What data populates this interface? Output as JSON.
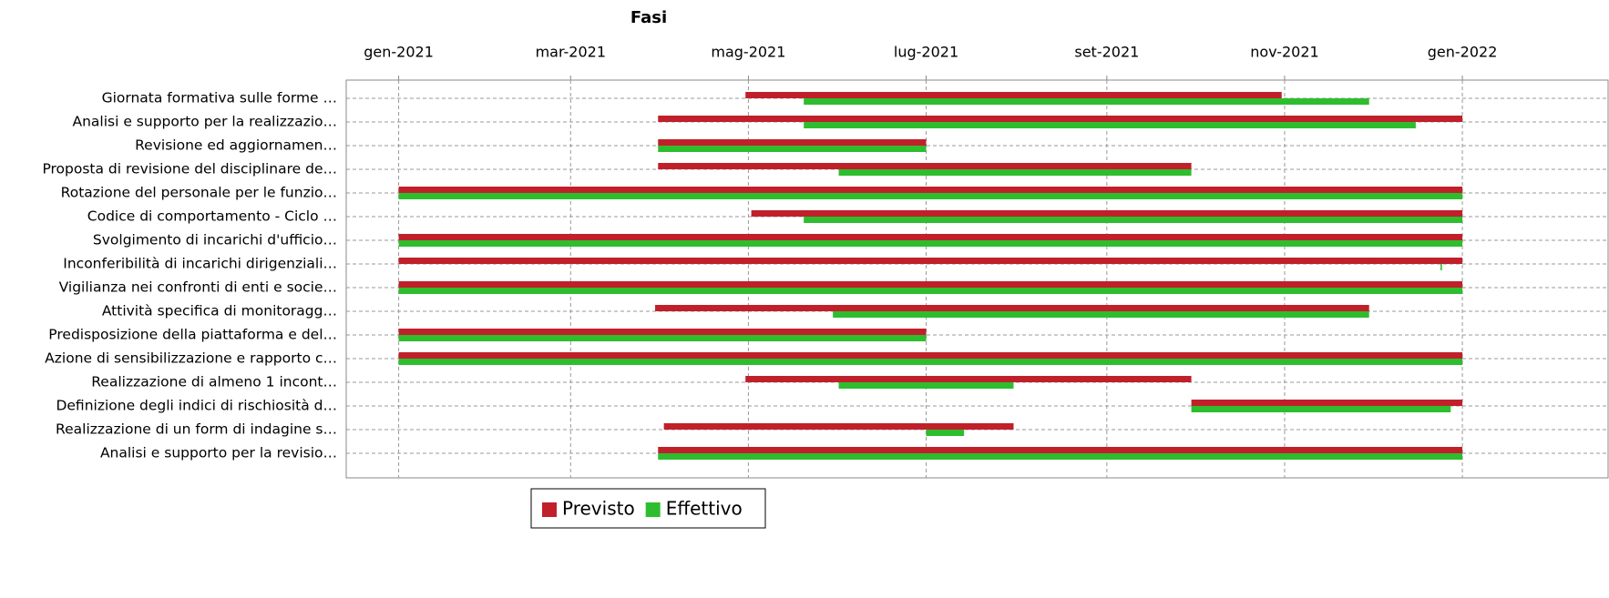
{
  "chart_data": {
    "type": "gantt",
    "title": "Fasi",
    "categories": [
      "Giornata formativa sulle forme …",
      "Analisi e supporto per la realizzazio…",
      "Revisione ed aggiornamen…",
      "Proposta di revisione del disciplinare de…",
      "Rotazione del personale per le funzio…",
      "Codice di comportamento - Ciclo …",
      "Svolgimento di incarichi d'ufficio…",
      "Inconferibilità di incarichi dirigenziali…",
      "Vigilianza nei confronti di enti e socie…",
      "Attività specifica di monitoragg…",
      "Predisposizione della piattaforma e del…",
      "Azione di sensibilizzazione e rapporto c…",
      "Realizzazione di almeno 1 incont…",
      "Definizione degli indici di rischiosità d…",
      "Realizzazione di un form di indagine s…",
      "Analisi e supporto per la revisio…"
    ],
    "series": [
      {
        "name": "Previsto",
        "color": "#c0202a",
        "start": [
          119,
          89,
          89,
          89,
          0,
          121,
          0,
          0,
          0,
          88,
          0,
          0,
          119,
          272,
          91,
          89
        ],
        "end": [
          303,
          365,
          181,
          272,
          365,
          365,
          365,
          365,
          365,
          333,
          181,
          365,
          272,
          365,
          211,
          365
        ]
      },
      {
        "name": "Effettivo",
        "color": "#2ebd2e",
        "start": [
          139,
          139,
          89,
          151,
          0,
          139,
          0,
          357.5,
          0,
          149,
          0,
          0,
          151,
          272,
          181,
          89
        ],
        "end": [
          333,
          349,
          181,
          272,
          365,
          365,
          365,
          358,
          365,
          333,
          181,
          365,
          211,
          361,
          194,
          365
        ]
      }
    ],
    "xlim": [
      -18,
      415
    ],
    "xticks": [
      {
        "value": 0,
        "label": "gen-2021"
      },
      {
        "value": 59,
        "label": "mar-2021"
      },
      {
        "value": 120,
        "label": "mag-2021"
      },
      {
        "value": 181,
        "label": "lug-2021"
      },
      {
        "value": 243,
        "label": "set-2021"
      },
      {
        "value": 304,
        "label": "nov-2021"
      },
      {
        "value": 365,
        "label": "gen-2022"
      }
    ],
    "grid": true,
    "legend": "bottom"
  }
}
